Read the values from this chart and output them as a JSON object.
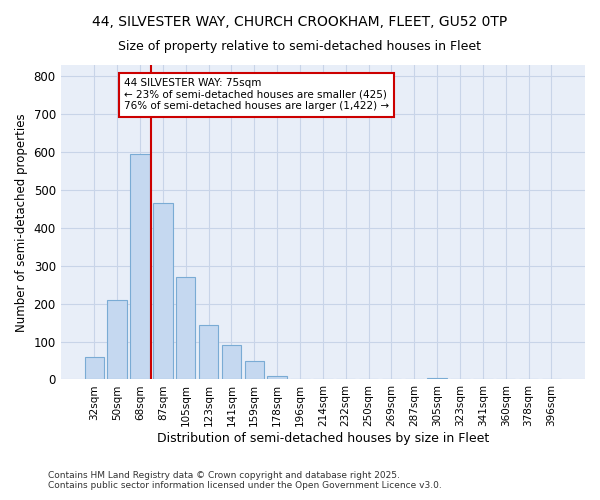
{
  "title_line1": "44, SILVESTER WAY, CHURCH CROOKHAM, FLEET, GU52 0TP",
  "title_line2": "Size of property relative to semi-detached houses in Fleet",
  "xlabel": "Distribution of semi-detached houses by size in Fleet",
  "ylabel": "Number of semi-detached properties",
  "footer": "Contains HM Land Registry data © Crown copyright and database right 2025.\nContains public sector information licensed under the Open Government Licence v3.0.",
  "categories": [
    "32sqm",
    "50sqm",
    "68sqm",
    "87sqm",
    "105sqm",
    "123sqm",
    "141sqm",
    "159sqm",
    "178sqm",
    "196sqm",
    "214sqm",
    "232sqm",
    "250sqm",
    "269sqm",
    "287sqm",
    "305sqm",
    "323sqm",
    "341sqm",
    "360sqm",
    "378sqm",
    "396sqm"
  ],
  "values": [
    60,
    210,
    595,
    465,
    270,
    145,
    92,
    48,
    8,
    0,
    0,
    0,
    0,
    0,
    0,
    3,
    0,
    0,
    0,
    0,
    0
  ],
  "bar_color": "#c5d8f0",
  "bar_edge_color": "#7aabd4",
  "grid_color": "#c8d4e8",
  "background_color": "#ffffff",
  "ax_background_color": "#e8eef8",
  "vline_bar_index": 2,
  "annotation_line1": "44 SILVESTER WAY: 75sqm",
  "annotation_line2": "← 23% of semi-detached houses are smaller (425)",
  "annotation_line3": "76% of semi-detached houses are larger (1,422) →",
  "vline_color": "#cc0000",
  "ylim": [
    0,
    830
  ],
  "yticks": [
    0,
    100,
    200,
    300,
    400,
    500,
    600,
    700,
    800
  ]
}
